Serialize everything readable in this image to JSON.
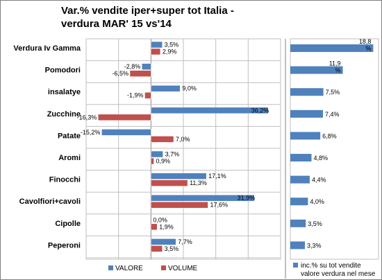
{
  "chart_data": [
    {
      "type": "bar",
      "orientation": "horizontal",
      "title": "Var.% vendite iper+super tot Italia - verdura MAR' 15 vs'14",
      "title_lines": [
        "Var.% vendite iper+super tot Italia  -",
        "verdura MAR' 15 vs'14"
      ],
      "categories": [
        "Verdura Iv Gamma",
        "Pomodori",
        "insalatye",
        "Zucchine",
        "Patate",
        "Aromi",
        "Finocchi",
        "Cavolfiori+cavoli",
        "Cipolle",
        "Peperoni"
      ],
      "series": [
        {
          "name": "VALORE",
          "color": "#4f81bd",
          "values": [
            3.5,
            -2.8,
            9.0,
            36.2,
            -15.2,
            3.7,
            17.1,
            31.9,
            0.0,
            7.7
          ],
          "labels": [
            "3,5%",
            "-2,8%",
            "9,0%",
            "36,2%",
            "-15,2%",
            "3,7%",
            "17,1%",
            "31,9%",
            "0,0%",
            "7,7%"
          ]
        },
        {
          "name": "VOLUME",
          "color": "#c0504d",
          "values": [
            2.9,
            -6.5,
            -1.9,
            -16.3,
            7.0,
            0.9,
            11.3,
            17.6,
            1.9,
            3.5
          ],
          "labels": [
            "2,9%",
            "-6,5%",
            "-1,9%",
            "-16,3%",
            "7,0%",
            "0,9%",
            "11,3%",
            "17,6%",
            "1,9%",
            "3,5%"
          ]
        }
      ],
      "xlim": [
        -20,
        40
      ],
      "grid": true,
      "legend": "bottom"
    },
    {
      "type": "bar",
      "orientation": "horizontal",
      "categories": [
        "Verdura Iv Gamma",
        "Pomodori",
        "insalatye",
        "Zucchine",
        "Patate",
        "Aromi",
        "Finocchi",
        "Cavolfiori+cavoli",
        "Cipolle",
        "Peperoni"
      ],
      "series": [
        {
          "name": "inc.% su tot vendite valore verdura nel mese",
          "legend_lines": [
            "inc.% su tot vendite",
            "valore verdura nel mese"
          ],
          "color": "#4f81bd",
          "values": [
            18.8,
            11.9,
            7.5,
            7.4,
            6.8,
            4.8,
            4.4,
            4.0,
            3.5,
            3.3
          ],
          "labels": [
            "18,8%",
            "11,9%",
            "7,5%",
            "7,4%",
            "6,8%",
            "4,8%",
            "4,4%",
            "4,0%",
            "3,5%",
            "3,3%"
          ]
        }
      ],
      "xlim": [
        0,
        20
      ],
      "grid": false,
      "legend": "bottom"
    }
  ]
}
